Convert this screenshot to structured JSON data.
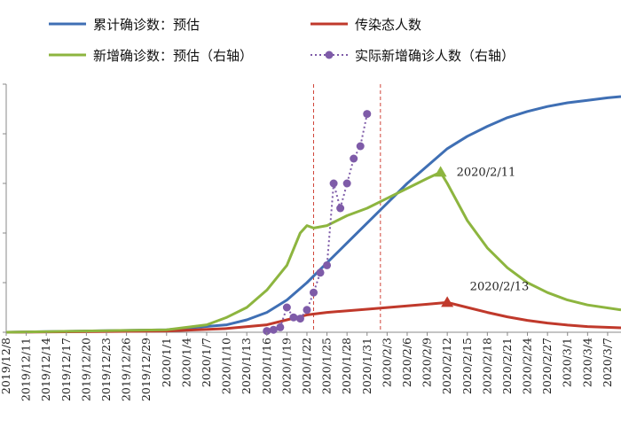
{
  "chart_data": {
    "type": "line",
    "title": "",
    "xlabel": "",
    "ylabel": "",
    "grid": false,
    "legend_position": "top",
    "x_ticks": [
      "2019/12/8",
      "2019/12/11",
      "2019/12/14",
      "2019/12/17",
      "2019/12/20",
      "2019/12/23",
      "2019/12/26",
      "2019/12/29",
      "2020/1/1",
      "2020/1/4",
      "2020/1/7",
      "2020/1/10",
      "2020/1/13",
      "2020/1/16",
      "2020/1/19",
      "2020/1/22",
      "2020/1/25",
      "2020/1/28",
      "2020/1/31",
      "2020/2/3",
      "2020/2/6",
      "2020/2/9",
      "2020/2/12",
      "2020/2/15",
      "2020/2/18",
      "2020/2/21",
      "2020/2/24",
      "2020/2/27",
      "2020/3/1",
      "2020/3/4",
      "2020/3/7"
    ],
    "series": [
      {
        "name": "累计确诊数：预估",
        "axis": "left",
        "color": "#3f6fb4",
        "marker": "none",
        "points": [
          [
            "2019/12/8",
            0
          ],
          [
            "2020/1/1",
            0.01
          ],
          [
            "2020/1/10",
            0.03
          ],
          [
            "2020/1/13",
            0.05
          ],
          [
            "2020/1/16",
            0.08
          ],
          [
            "2020/1/19",
            0.13
          ],
          [
            "2020/1/22",
            0.2
          ],
          [
            "2020/1/25",
            0.28
          ],
          [
            "2020/1/28",
            0.36
          ],
          [
            "2020/1/31",
            0.44
          ],
          [
            "2020/2/3",
            0.52
          ],
          [
            "2020/2/6",
            0.6
          ],
          [
            "2020/2/9",
            0.67
          ],
          [
            "2020/2/12",
            0.74
          ],
          [
            "2020/2/15",
            0.79
          ],
          [
            "2020/2/18",
            0.83
          ],
          [
            "2020/2/21",
            0.865
          ],
          [
            "2020/2/24",
            0.89
          ],
          [
            "2020/2/27",
            0.91
          ],
          [
            "2020/3/1",
            0.925
          ],
          [
            "2020/3/4",
            0.935
          ],
          [
            "2020/3/7",
            0.945
          ],
          [
            "2020/3/9",
            0.95
          ]
        ]
      },
      {
        "name": "传染态人数",
        "axis": "left",
        "color": "#c0392b",
        "marker": "triangle-at-peak",
        "points": [
          [
            "2019/12/8",
            0
          ],
          [
            "2020/1/1",
            0.005
          ],
          [
            "2020/1/10",
            0.015
          ],
          [
            "2020/1/16",
            0.03
          ],
          [
            "2020/1/19",
            0.05
          ],
          [
            "2020/1/22",
            0.07
          ],
          [
            "2020/1/25",
            0.08
          ],
          [
            "2020/1/31",
            0.093
          ],
          [
            "2020/2/6",
            0.106
          ],
          [
            "2020/2/9",
            0.113
          ],
          [
            "2020/2/12",
            0.12
          ],
          [
            "2020/2/15",
            0.1
          ],
          [
            "2020/2/18",
            0.08
          ],
          [
            "2020/2/21",
            0.062
          ],
          [
            "2020/2/24",
            0.048
          ],
          [
            "2020/2/27",
            0.037
          ],
          [
            "2020/3/1",
            0.029
          ],
          [
            "2020/3/4",
            0.023
          ],
          [
            "2020/3/9",
            0.018
          ]
        ]
      },
      {
        "name": "新增确诊数：预估（右轴）",
        "axis": "right",
        "color": "#8db53f",
        "marker": "triangle-at-peak",
        "points": [
          [
            "2019/12/8",
            0
          ],
          [
            "2020/1/1",
            0.01
          ],
          [
            "2020/1/7",
            0.03
          ],
          [
            "2020/1/10",
            0.06
          ],
          [
            "2020/1/13",
            0.1
          ],
          [
            "2020/1/16",
            0.17
          ],
          [
            "2020/1/19",
            0.27
          ],
          [
            "2020/1/21",
            0.4
          ],
          [
            "2020/1/22",
            0.43
          ],
          [
            "2020/1/23",
            0.42
          ],
          [
            "2020/1/25",
            0.43
          ],
          [
            "2020/1/28",
            0.47
          ],
          [
            "2020/1/31",
            0.5
          ],
          [
            "2020/2/3",
            0.54
          ],
          [
            "2020/2/6",
            0.58
          ],
          [
            "2020/2/9",
            0.62
          ],
          [
            "2020/2/11",
            0.645
          ],
          [
            "2020/2/12",
            0.6
          ],
          [
            "2020/2/15",
            0.45
          ],
          [
            "2020/2/18",
            0.34
          ],
          [
            "2020/2/21",
            0.26
          ],
          [
            "2020/2/24",
            0.2
          ],
          [
            "2020/2/27",
            0.16
          ],
          [
            "2020/3/1",
            0.13
          ],
          [
            "2020/3/4",
            0.11
          ],
          [
            "2020/3/9",
            0.09
          ]
        ]
      },
      {
        "name": "实际新增确诊人数（右轴）",
        "axis": "right",
        "color": "#7e5ba8",
        "marker": "circle",
        "dashed": true,
        "points": [
          [
            "2020/1/16",
            0.005
          ],
          [
            "2020/1/17",
            0.01
          ],
          [
            "2020/1/18",
            0.02
          ],
          [
            "2020/1/19",
            0.1
          ],
          [
            "2020/1/20",
            0.06
          ],
          [
            "2020/1/21",
            0.055
          ],
          [
            "2020/1/22",
            0.09
          ],
          [
            "2020/1/23",
            0.16
          ],
          [
            "2020/1/24",
            0.24
          ],
          [
            "2020/1/25",
            0.27
          ],
          [
            "2020/1/26",
            0.6
          ],
          [
            "2020/1/27",
            0.5
          ],
          [
            "2020/1/28",
            0.6
          ],
          [
            "2020/1/29",
            0.7
          ],
          [
            "2020/1/30",
            0.75
          ],
          [
            "2020/1/31",
            0.88
          ]
        ]
      }
    ],
    "vertical_lines": [
      {
        "x": "2020/1/23",
        "color": "#d0453a",
        "style": "dashed"
      },
      {
        "x": "2020/2/2",
        "color": "#d0453a",
        "style": "dashed"
      }
    ],
    "annotations": [
      {
        "text": "2020/2/11",
        "x": "2020/2/11"
      },
      {
        "text": "2020/2/13",
        "x": "2020/2/13"
      }
    ],
    "x_range": [
      "2019/12/8",
      "2020/3/9"
    ],
    "left_ylim": [
      0,
      1
    ],
    "right_ylim": [
      0,
      1
    ]
  }
}
